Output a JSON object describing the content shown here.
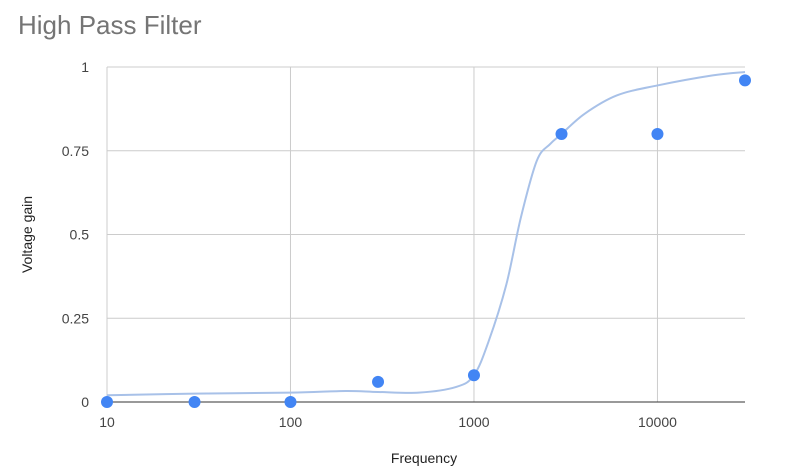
{
  "chart_data": {
    "type": "scatter",
    "title": "High Pass Filter",
    "xlabel": "Frequency",
    "ylabel": "Voltage gain",
    "x_scale": "log",
    "xlim": [
      10,
      30000
    ],
    "ylim": [
      0,
      1
    ],
    "x_ticks": [
      10,
      100,
      1000,
      10000
    ],
    "x_tick_labels": [
      "10",
      "100",
      "1000",
      "10000"
    ],
    "y_ticks": [
      0,
      0.25,
      0.5,
      0.75,
      1
    ],
    "y_tick_labels": [
      "0",
      "0.25",
      "0.5",
      "0.75",
      "1"
    ],
    "grid": true,
    "legend": "none",
    "series": [
      {
        "x": [
          10,
          30,
          100,
          300,
          1000,
          3000,
          10000,
          30000
        ],
        "y": [
          0,
          0,
          0,
          0.06,
          0.08,
          0.8,
          0.8,
          0.96
        ],
        "color": "#4285f4"
      }
    ],
    "trendline": {
      "color": "#a8c1e8",
      "x": [
        10,
        30,
        100,
        200,
        300,
        500,
        800,
        1000,
        1200,
        1500,
        1800,
        2200,
        2600,
        3000,
        4000,
        6000,
        10000,
        20000,
        30000
      ],
      "y": [
        0.02,
        0.025,
        0.028,
        0.033,
        0.03,
        0.028,
        0.045,
        0.08,
        0.18,
        0.35,
        0.55,
        0.72,
        0.77,
        0.8,
        0.86,
        0.915,
        0.945,
        0.975,
        0.985
      ]
    }
  }
}
